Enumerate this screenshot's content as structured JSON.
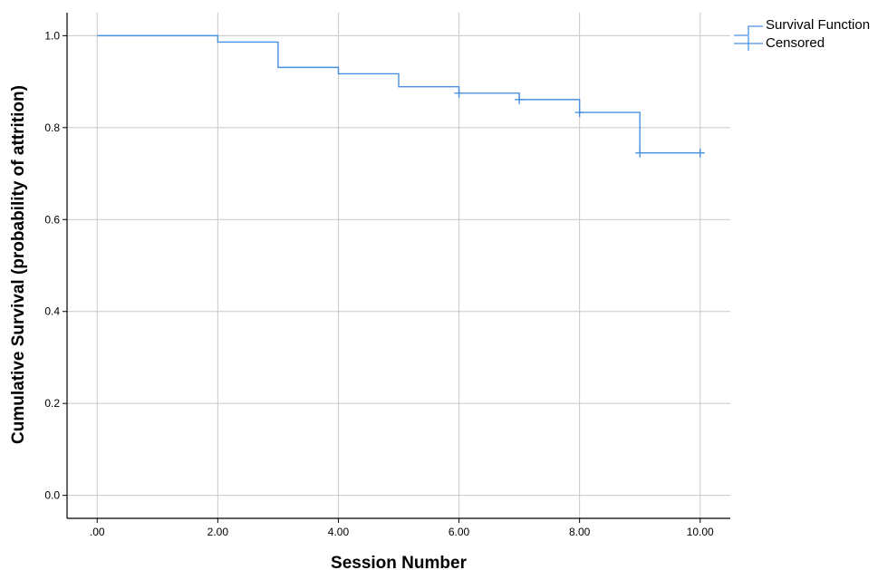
{
  "chart_data": {
    "type": "line",
    "xlabel": "Session Number",
    "ylabel": "Cumulative Survival (probability of attrition)",
    "xlim": [
      -0.5,
      10.5
    ],
    "ylim": [
      -0.05,
      1.05
    ],
    "x_ticks": [
      0,
      2,
      4,
      6,
      8,
      10
    ],
    "x_tick_labels": [
      ".00",
      "2.00",
      "4.00",
      "6.00",
      "8.00",
      "10.00"
    ],
    "y_ticks": [
      0,
      0.2,
      0.4,
      0.6,
      0.8,
      1.0
    ],
    "y_tick_labels": [
      "0.0",
      "0.2",
      "0.4",
      "0.6",
      "0.8",
      "1.0"
    ],
    "grid": true,
    "legend_position": "top-right",
    "series": [
      {
        "name": "Survival Function",
        "kind": "step",
        "color": "#4a90e2",
        "x": [
          0,
          2,
          3,
          4,
          5,
          6,
          7,
          8,
          9,
          10
        ],
        "y": [
          1.0,
          0.986,
          0.931,
          0.917,
          0.889,
          0.875,
          0.861,
          0.833,
          0.745,
          0.745
        ]
      },
      {
        "name": "Censored",
        "kind": "marker",
        "color": "#4a90e2",
        "x": [
          6,
          7,
          8,
          9,
          10
        ],
        "y": [
          0.875,
          0.861,
          0.833,
          0.745,
          0.745
        ]
      }
    ]
  }
}
